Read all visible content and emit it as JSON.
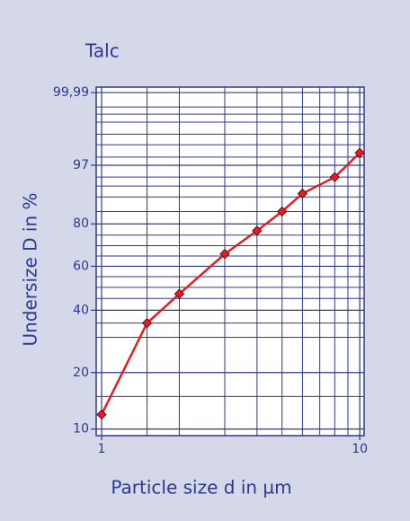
{
  "chart_data": {
    "type": "line",
    "title": "Talc",
    "x_label": "Particle size d in µm",
    "y_label": "Undersize D in %",
    "x_scale": "log",
    "y_scale": "rrsb",
    "xlim": [
      0.953,
      10.4
    ],
    "ylim": [
      9.2,
      99.995
    ],
    "xticks": [
      1,
      10
    ],
    "yticks": [
      10,
      20,
      40,
      60,
      80,
      97,
      {
        "value": 99.99,
        "label": "99,99"
      }
    ],
    "xgrid": [
      1.5,
      2,
      3,
      4,
      5,
      6,
      7,
      8,
      9
    ],
    "ygrid": [
      15,
      30,
      35,
      45,
      50,
      55,
      65,
      70,
      75,
      85,
      90,
      93,
      95,
      98,
      99,
      99.5,
      99.8,
      99.9,
      99.95
    ],
    "grid": true,
    "x": [
      1,
      1.5,
      2,
      3,
      4,
      5,
      6,
      8,
      10
    ],
    "series": [
      {
        "name": "Talc",
        "color": "#e31e24",
        "values": [
          12,
          35,
          47,
          66,
          77,
          85,
          91,
          95,
          98.4
        ]
      }
    ]
  }
}
